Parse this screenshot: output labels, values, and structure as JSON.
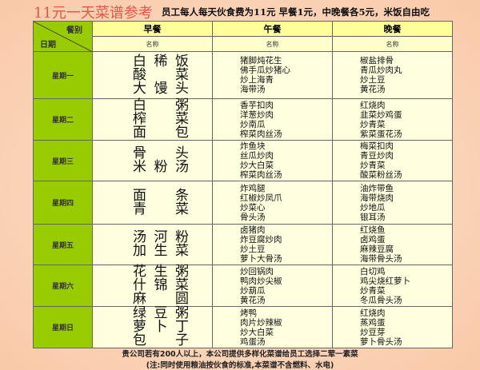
{
  "title": "11元一天菜谱参考",
  "subtitle": "员工每人每天伙食费为11元 早餐1元，中晚餐各5元，米饭自由吃",
  "header": {
    "corner_top": "餐别",
    "corner_bottom": "日期",
    "meals": [
      "早餐",
      "午餐",
      "晚餐"
    ],
    "sub": [
      "名称",
      "名称",
      "名称"
    ]
  },
  "days": [
    {
      "day": "星期一",
      "breakfast": [
        "白稀饭",
        "酸　菜",
        "大馒头"
      ],
      "lunch": [
        "猪脚炖花生",
        "佛手瓜炒猪心",
        "炒上海青",
        "海带汤"
      ],
      "dinner": [
        "椒盐排骨",
        "青瓜炒肉丸",
        "炒土豆",
        "黄花汤"
      ]
    },
    {
      "day": "星期二",
      "breakfast": [
        "白　粥",
        "榨　菜",
        "面　包"
      ],
      "lunch": [
        "香芋扣肉",
        "洋葱炒肉",
        "炒南瓜",
        "榨菜肉丝汤"
      ],
      "dinner": [
        "红烧肉",
        "韭菜炒鸡蛋",
        "炒青菜",
        "紫菜蛋花汤"
      ]
    },
    {
      "day": "星期三",
      "breakfast": [
        "骨　头",
        "米粉汤"
      ],
      "lunch": [
        "炸鱼块",
        "丝瓜炒肉",
        "炒大白菜",
        "榨菜肉丝汤"
      ],
      "dinner": [
        "梅菜扣肉",
        "青豆炒肉",
        "炒青菜",
        "酸菜粉丝汤"
      ]
    },
    {
      "day": "星期四",
      "breakfast": [
        "面　条",
        "青　菜"
      ],
      "lunch": [
        "炸鸡腿",
        "红椒炒凤爪",
        "炒菜心",
        "骨头汤"
      ],
      "dinner": [
        "油炸带鱼",
        "海带烧肉",
        "炒地瓜",
        "银耳汤"
      ]
    },
    {
      "day": "星期五",
      "breakfast": [
        "汤河粉",
        "加生菜"
      ],
      "lunch": [
        "卤猪肉",
        "炸豆腐炒肉",
        "炒土豆",
        "萝卜大骨汤"
      ],
      "dinner": [
        "红烧鱼",
        "卤鸡蛋",
        "麻辣豆腐",
        "海带骨头汤"
      ]
    },
    {
      "day": "星期六",
      "breakfast": [
        "花生粥",
        "什锦菜",
        "麻　圆"
      ],
      "lunch": [
        "炒回锅肉",
        "鸭肉炒尖椒",
        "炒葫瓜",
        "黄花汤"
      ],
      "dinner": [
        "白切鸡",
        "鸡尖烧红萝卜",
        "炒青菜",
        "冬瓜骨头汤"
      ]
    },
    {
      "day": "星期日",
      "breakfast": [
        "绿豆粥",
        "萝卜丁",
        "包　子"
      ],
      "lunch": [
        "烤鸭",
        "肉片炒辣椒",
        "炒大白菜",
        "鸡蛋汤"
      ],
      "dinner": [
        "红烧肉",
        "蒸鸡蛋",
        "炒豆芽",
        "萝卜骨头汤"
      ]
    }
  ],
  "footer": [
    "贵公司若有200人以上，本公司提供多样化菜谱给员工选择二荤一素菜",
    "(注:同时使用粮油按伙食的标准,本菜谱不含燃料、水电)"
  ]
}
